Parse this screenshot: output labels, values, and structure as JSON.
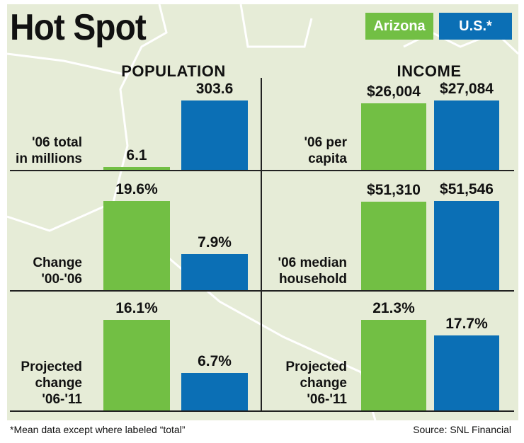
{
  "title": "Hot Spot",
  "legend": {
    "arizona": "Arizona",
    "us": "U.S.*"
  },
  "colors": {
    "arizona": "#72bf44",
    "us": "#0b6fb5",
    "map": "#e6ecd7",
    "map_lines": "#ffffff"
  },
  "footnote": "*Mean data except where labeled “total”",
  "source": "Source: SNL Financial",
  "chart_data": [
    {
      "type": "bar",
      "section": "POPULATION",
      "title": "'06 total in millions",
      "label_lines": [
        "'06 total",
        "in millions"
      ],
      "categories": [
        "Arizona",
        "U.S.*"
      ],
      "values": [
        6.1,
        303.6
      ],
      "labels": [
        "6.1",
        "303.6"
      ],
      "ylim": [
        0,
        303.6
      ]
    },
    {
      "type": "bar",
      "section": "POPULATION",
      "title": "Change '00-'06",
      "label_lines": [
        "Change",
        "'00-'06"
      ],
      "categories": [
        "Arizona",
        "U.S.*"
      ],
      "values": [
        19.6,
        7.9
      ],
      "labels": [
        "19.6%",
        "7.9%"
      ],
      "ylim": [
        0,
        19.6
      ]
    },
    {
      "type": "bar",
      "section": "POPULATION",
      "title": "Projected change '06-'11",
      "label_lines": [
        "Projected",
        "change",
        "'06-'11"
      ],
      "categories": [
        "Arizona",
        "U.S.*"
      ],
      "values": [
        16.1,
        6.7
      ],
      "labels": [
        "16.1%",
        "6.7%"
      ],
      "ylim": [
        0,
        16.1
      ]
    },
    {
      "type": "bar",
      "section": "INCOME",
      "title": "'06 per capita",
      "label_lines": [
        "'06 per",
        "capita"
      ],
      "categories": [
        "Arizona",
        "U.S.*"
      ],
      "values": [
        26004,
        27084
      ],
      "labels": [
        "$26,004",
        "$27,084"
      ],
      "ylim": [
        0,
        27084
      ]
    },
    {
      "type": "bar",
      "section": "INCOME",
      "title": "'06 median household",
      "label_lines": [
        "'06 median",
        "household"
      ],
      "categories": [
        "Arizona",
        "U.S.*"
      ],
      "values": [
        51310,
        51546
      ],
      "labels": [
        "$51,310",
        "$51,546"
      ],
      "ylim": [
        0,
        51546
      ]
    },
    {
      "type": "bar",
      "section": "INCOME",
      "title": "Projected change '06-'11",
      "label_lines": [
        "Projected",
        "change",
        "'06-'11"
      ],
      "categories": [
        "Arizona",
        "U.S.*"
      ],
      "values": [
        21.3,
        17.7
      ],
      "labels": [
        "21.3%",
        "17.7%"
      ],
      "ylim": [
        0,
        21.3
      ]
    }
  ]
}
